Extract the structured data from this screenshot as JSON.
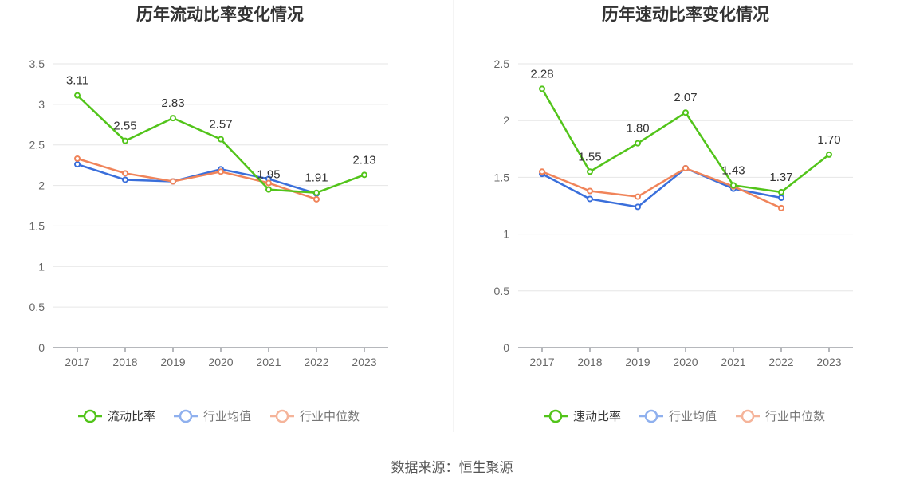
{
  "source_text": "数据来源：恒生聚源",
  "chart_data": [
    {
      "type": "line",
      "title": "历年流动比率变化情况",
      "categories": [
        "2017",
        "2018",
        "2019",
        "2020",
        "2021",
        "2022",
        "2023"
      ],
      "ylim": [
        0,
        3.5
      ],
      "yticks": [
        "0",
        "0.5",
        "1",
        "1.5",
        "2",
        "2.5",
        "3",
        "3.5"
      ],
      "grid": true,
      "legend_position": "bottom",
      "series": [
        {
          "name": "流动比率",
          "color": "#52c41a",
          "values": [
            3.11,
            2.55,
            2.83,
            2.57,
            1.95,
            1.91,
            2.13
          ],
          "labels": [
            "3.11",
            "2.55",
            "2.83",
            "2.57",
            "1.95",
            "1.91",
            "2.13"
          ]
        },
        {
          "name": "行业均值",
          "color": "#3a6fdb",
          "values": [
            2.26,
            2.07,
            2.05,
            2.2,
            2.08,
            1.9,
            null
          ]
        },
        {
          "name": "行业中位数",
          "color": "#f0845a",
          "values": [
            2.33,
            2.15,
            2.05,
            2.17,
            2.03,
            1.83,
            null
          ]
        }
      ]
    },
    {
      "type": "line",
      "title": "历年速动比率变化情况",
      "categories": [
        "2017",
        "2018",
        "2019",
        "2020",
        "2021",
        "2022",
        "2023"
      ],
      "ylim": [
        0,
        2.5
      ],
      "yticks": [
        "0",
        "0.5",
        "1",
        "1.5",
        "2",
        "2.5"
      ],
      "grid": true,
      "legend_position": "bottom",
      "series": [
        {
          "name": "速动比率",
          "color": "#52c41a",
          "values": [
            2.28,
            1.55,
            1.8,
            2.07,
            1.43,
            1.37,
            1.7
          ],
          "labels": [
            "2.28",
            "1.55",
            "1.80",
            "2.07",
            "1.43",
            "1.37",
            "1.70"
          ]
        },
        {
          "name": "行业均值",
          "color": "#3a6fdb",
          "values": [
            1.53,
            1.31,
            1.24,
            1.58,
            1.4,
            1.32,
            null
          ]
        },
        {
          "name": "行业中位数",
          "color": "#f0845a",
          "values": [
            1.55,
            1.38,
            1.33,
            1.58,
            1.42,
            1.23,
            null
          ]
        }
      ]
    }
  ]
}
